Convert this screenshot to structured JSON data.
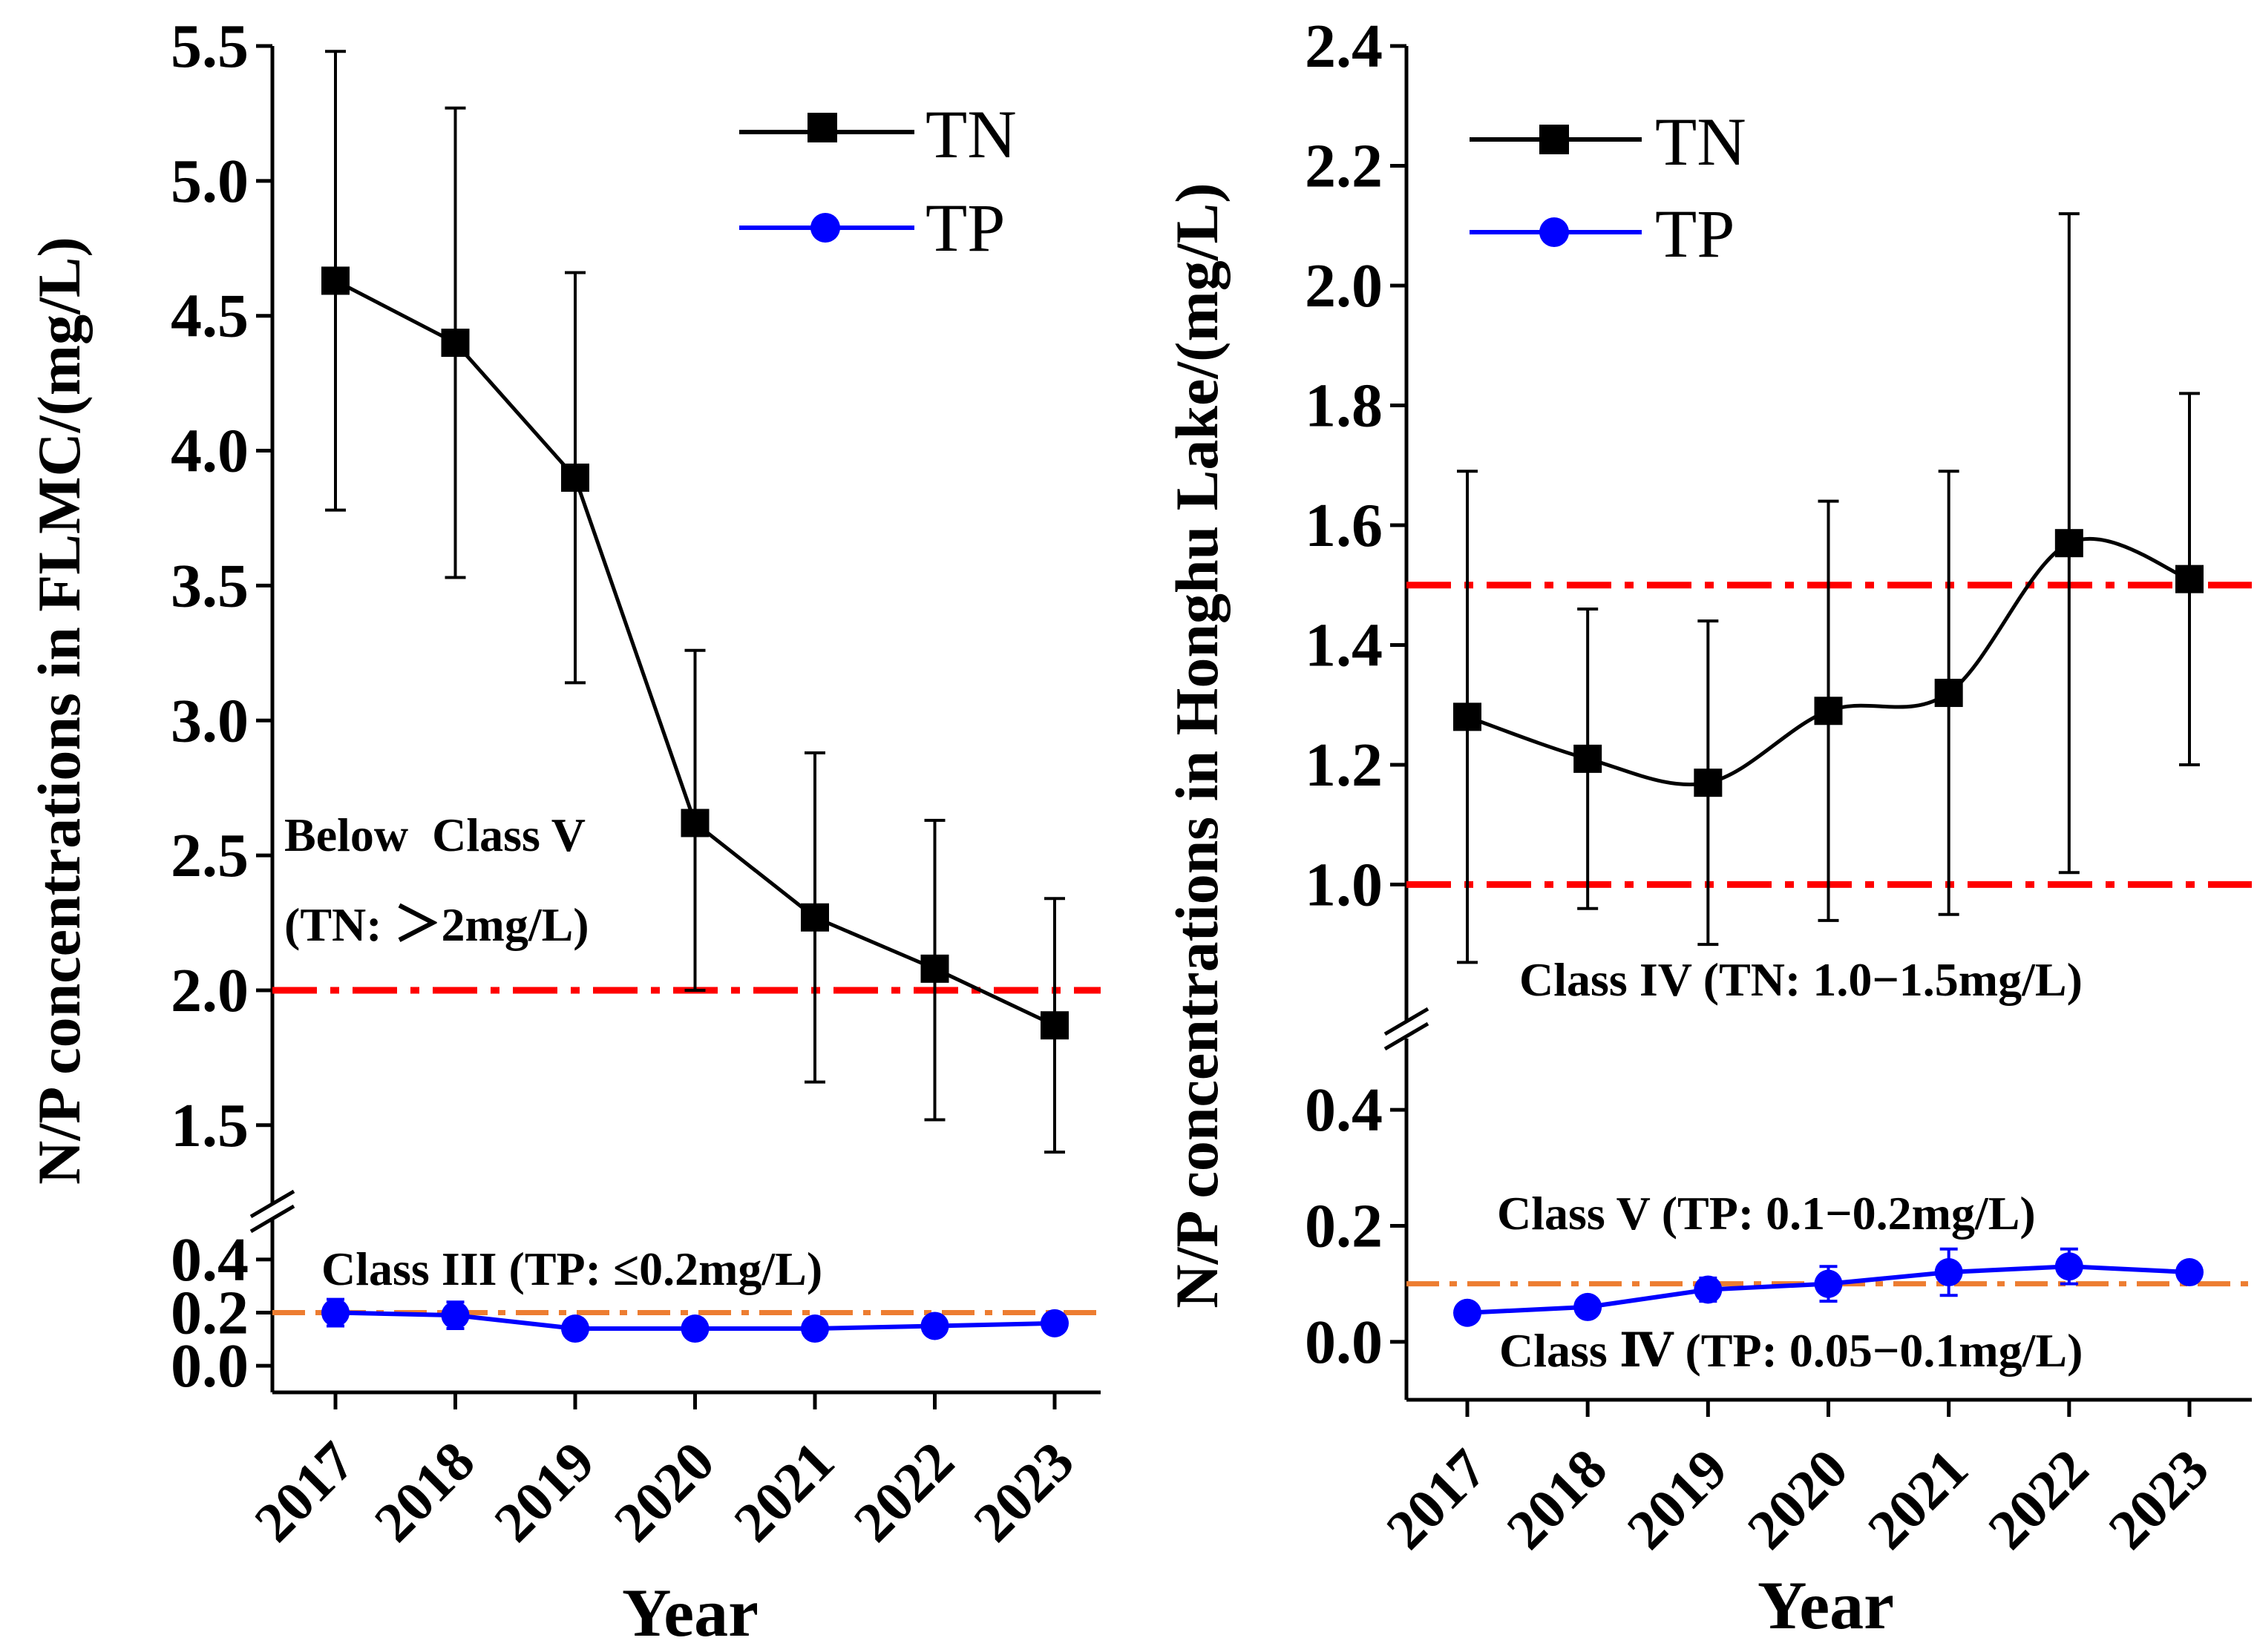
{
  "chart_data": [
    {
      "type": "line",
      "title": "",
      "xlabel": "Year",
      "ylabel": "N/P concentrations in FLMC/(mg/L)",
      "categories": [
        "2017",
        "2018",
        "2019",
        "2020",
        "2021",
        "2022",
        "2023"
      ],
      "y_break": true,
      "segments": [
        {
          "name": "lower",
          "ylim": [
            -0.1,
            0.45
          ],
          "ticks": [
            "0.0",
            "0.2",
            "0.4"
          ]
        },
        {
          "name": "upper",
          "ylim": [
            1.23,
            5.5
          ],
          "ticks": [
            "1.5",
            "2.0",
            "2.5",
            "3.0",
            "3.5",
            "4.0",
            "4.5",
            "5.0",
            "5.5"
          ]
        }
      ],
      "series": [
        {
          "name": "TN",
          "color": "#000000",
          "marker": "square",
          "segment": "upper",
          "smooth": false,
          "values": [
            4.63,
            4.4,
            3.9,
            2.62,
            2.27,
            2.08,
            1.87
          ],
          "err_low": [
            3.78,
            3.53,
            3.14,
            2.0,
            1.66,
            1.52,
            1.4
          ],
          "err_high": [
            5.48,
            5.27,
            4.66,
            3.26,
            2.88,
            2.63,
            2.34
          ]
        },
        {
          "name": "TP",
          "color": "#0000ff",
          "marker": "circle",
          "segment": "lower",
          "smooth": false,
          "values": [
            0.2,
            0.19,
            0.14,
            0.14,
            0.14,
            0.15,
            0.16
          ],
          "err_low": [
            0.15,
            0.14,
            0.11,
            0.11,
            0.11,
            0.12,
            0.13
          ],
          "err_high": [
            0.25,
            0.24,
            0.17,
            0.17,
            0.17,
            0.18,
            0.19
          ]
        }
      ],
      "reference_lines": [
        {
          "segment": "upper",
          "value": 2.0,
          "color": "#ff0000",
          "style": "dash-dot"
        },
        {
          "segment": "lower",
          "value": 0.2,
          "color": "#ed7d31",
          "style": "dash-dot"
        }
      ],
      "annotations": [
        "Below  Class V",
        "(TN: ＞2mg/L)",
        "Class III (TP: ≤0.2mg/L)"
      ],
      "legend": {
        "position": "top-right",
        "entries": [
          "TN",
          "TP"
        ]
      }
    },
    {
      "type": "line",
      "title": "",
      "xlabel": "Year",
      "ylabel": "N/P concentrations in Honghu Lake/(mg/L)",
      "categories": [
        "2017",
        "2018",
        "2019",
        "2020",
        "2021",
        "2022",
        "2023"
      ],
      "y_break": true,
      "segments": [
        {
          "name": "lower",
          "ylim": [
            -0.1,
            0.5
          ],
          "ticks": [
            "0.0",
            "0.2",
            "0.4"
          ]
        },
        {
          "name": "upper",
          "ylim": [
            0.79,
            2.4
          ],
          "ticks": [
            "1.0",
            "1.2",
            "1.4",
            "1.6",
            "1.8",
            "2.0",
            "2.2",
            "2.4"
          ]
        }
      ],
      "series": [
        {
          "name": "TN",
          "color": "#000000",
          "marker": "square",
          "segment": "upper",
          "smooth": true,
          "values": [
            1.28,
            1.21,
            1.17,
            1.29,
            1.32,
            1.57,
            1.51
          ],
          "err_low": [
            0.87,
            0.96,
            0.9,
            0.94,
            0.95,
            1.02,
            1.2
          ],
          "err_high": [
            1.69,
            1.46,
            1.44,
            1.64,
            1.69,
            2.12,
            1.82
          ]
        },
        {
          "name": "TP",
          "color": "#0000ff",
          "marker": "circle",
          "segment": "lower",
          "smooth": false,
          "values": [
            0.05,
            0.06,
            0.09,
            0.1,
            0.12,
            0.13,
            0.12
          ],
          "err_low": [
            0.04,
            0.05,
            0.07,
            0.07,
            0.08,
            0.1,
            0.11
          ],
          "err_high": [
            0.06,
            0.07,
            0.11,
            0.13,
            0.16,
            0.16,
            0.13
          ]
        }
      ],
      "reference_lines": [
        {
          "segment": "upper",
          "value": 1.5,
          "color": "#ff0000",
          "style": "dash-dot"
        },
        {
          "segment": "upper",
          "value": 1.0,
          "color": "#ff0000",
          "style": "dash-dot"
        },
        {
          "segment": "lower",
          "value": 0.1,
          "color": "#ed7d31",
          "style": "dash-dot"
        }
      ],
      "annotations": [
        "Class IV (TN: 1.0−1.5mg/L)",
        "Class V (TP: 0.1−0.2mg/L)",
        "Class Ⅳ (TP: 0.05−0.1mg/L)"
      ],
      "legend": {
        "position": "top-left",
        "entries": [
          "TN",
          "TP"
        ]
      }
    }
  ]
}
